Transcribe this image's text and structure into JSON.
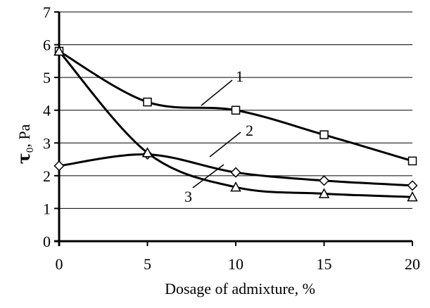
{
  "chart_data": {
    "type": "line",
    "title": "",
    "xlabel": "Dosage of admixture, %",
    "ylabel": {
      "symbol": "τ",
      "subscript": "0",
      "unit": ", Pa"
    },
    "xlim": [
      0,
      20
    ],
    "ylim": [
      0,
      7
    ],
    "x_ticks": [
      "0",
      "5",
      "10",
      "15",
      "20"
    ],
    "y_ticks": [
      "0",
      "1",
      "2",
      "3",
      "4",
      "5",
      "6",
      "7"
    ],
    "grid": "horizontal",
    "series": [
      {
        "label": "1",
        "marker": "square",
        "x": [
          0,
          5,
          10,
          15,
          20
        ],
        "y": [
          5.8,
          4.25,
          4.0,
          3.25,
          2.45
        ]
      },
      {
        "label": "2",
        "marker": "diamond",
        "x": [
          0,
          5,
          10,
          15,
          20
        ],
        "y": [
          2.3,
          2.65,
          2.1,
          1.85,
          1.7
        ]
      },
      {
        "label": "3",
        "marker": "triangle",
        "x": [
          0,
          5,
          10,
          15,
          20
        ],
        "y": [
          5.8,
          2.7,
          1.65,
          1.45,
          1.35
        ]
      }
    ]
  }
}
